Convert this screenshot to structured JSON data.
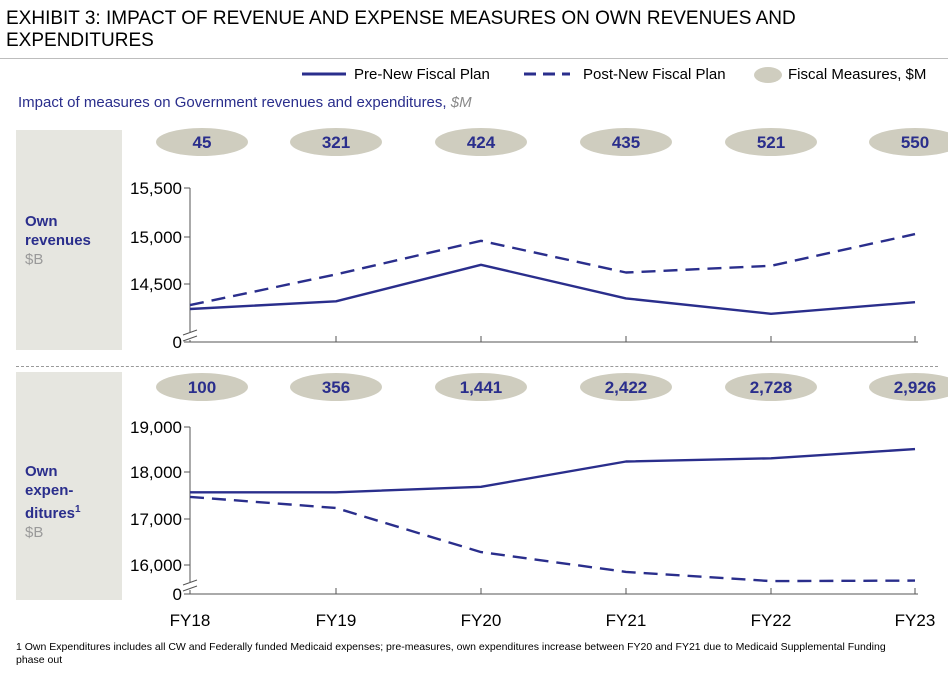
{
  "title": "EXHIBIT 3: IMPACT OF REVENUE AND EXPENSE MEASURES ON OWN REVENUES AND EXPENDITURES",
  "subtitle": "Impact of measures on Government revenues and expenditures,",
  "subtitle_unit": "$M",
  "legend": {
    "pre": "Pre-New Fiscal Plan",
    "post": "Post-New Fiscal Plan",
    "measures": "Fiscal Measures, $M"
  },
  "colors": {
    "line": "#2a2e8c",
    "pill": "#cfcdbf",
    "panel": "#e6e6e0"
  },
  "panels": {
    "revenues": {
      "label": "Own revenues",
      "line1": "Own",
      "line2": "revenues",
      "unit": "$B"
    },
    "expenditures": {
      "label": "Own expen-ditures",
      "line1": "Own",
      "line2": "expen-",
      "line3": "ditures",
      "sup": "1",
      "unit": "$B"
    }
  },
  "footnote": "1 Own Expenditures includes all CW and Federally funded Medicaid expenses; pre-measures, own expenditures increase between FY20 and FY21 due to Medicaid Supplemental Funding phase out",
  "chart_data": [
    {
      "type": "line",
      "name": "Own revenues",
      "categories": [
        "FY18",
        "FY19",
        "FY20",
        "FY21",
        "FY22",
        "FY23"
      ],
      "y_ticks": [
        "15,500",
        "15,000",
        "14,500",
        "0"
      ],
      "ylim": [
        14100,
        15500
      ],
      "axis_break": true,
      "fiscal_measures": [
        "45",
        "321",
        "424",
        "435",
        "521",
        "550"
      ],
      "series": [
        {
          "name": "Pre-New Fiscal Plan",
          "style": "solid",
          "values": [
            14240,
            14320,
            14700,
            14350,
            14190,
            14310
          ]
        },
        {
          "name": "Post-New Fiscal Plan",
          "style": "dashed",
          "values": [
            14280,
            14600,
            14950,
            14620,
            14690,
            15020
          ]
        }
      ]
    },
    {
      "type": "line",
      "name": "Own expenditures",
      "categories": [
        "FY18",
        "FY19",
        "FY20",
        "FY21",
        "FY22",
        "FY23"
      ],
      "x_labels": [
        "FY18",
        "FY19",
        "FY20",
        "FY21",
        "FY22",
        "FY23"
      ],
      "y_ticks": [
        "19,000",
        "18,000",
        "17,000",
        "16,000",
        "0"
      ],
      "ylim": [
        15350,
        19000
      ],
      "axis_break": true,
      "fiscal_measures": [
        "100",
        "356",
        "1,441",
        "2,422",
        "2,728",
        "2,926"
      ],
      "series": [
        {
          "name": "Pre-New Fiscal Plan",
          "style": "solid",
          "values": [
            17580,
            17580,
            17700,
            18250,
            18320,
            18520
          ]
        },
        {
          "name": "Post-New Fiscal Plan",
          "style": "dashed",
          "values": [
            17480,
            17240,
            16280,
            15850,
            15650,
            15660
          ]
        }
      ]
    }
  ]
}
